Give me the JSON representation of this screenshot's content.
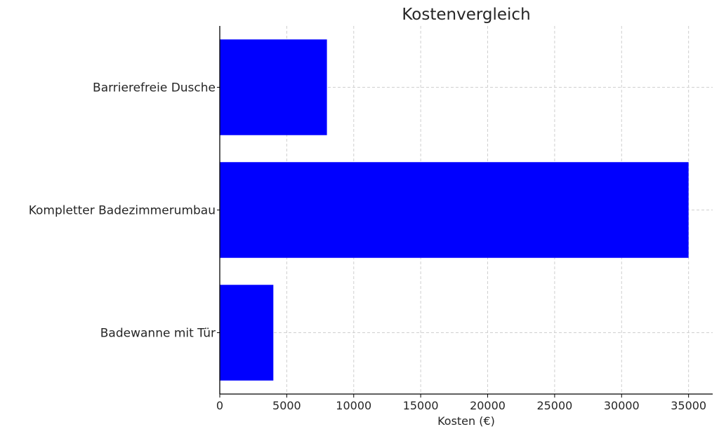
{
  "chart_data": {
    "type": "bar",
    "orientation": "horizontal",
    "title": "Kostenvergleich",
    "xlabel": "Kosten (€)",
    "ylabel": "",
    "categories": [
      "Badewanne mit Tür",
      "Kompletter Badezimmerumbau",
      "Barrierefreie Dusche"
    ],
    "values": [
      4000,
      35000,
      8000
    ],
    "xlim": [
      0,
      36800
    ],
    "xticks": [
      0,
      5000,
      10000,
      15000,
      20000,
      25000,
      30000,
      35000
    ],
    "grid": true,
    "bar_color": "#0000ff"
  }
}
